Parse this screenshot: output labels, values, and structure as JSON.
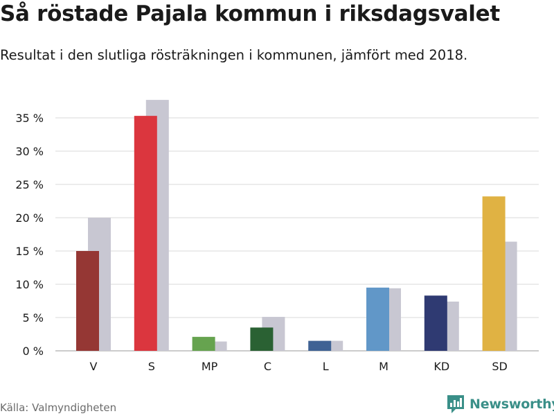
{
  "title": "Så röstade Pajala kommun i riksdagsvalet",
  "subtitle": "Resultat i den slutliga rösträkningen i kommunen, jämfört med 2018.",
  "source": "Källa: Valmyndigheten",
  "brand": "Newsworthy",
  "colors": {
    "comparison": "#c8c7d2",
    "grid": "#dadada",
    "brand": "#3a8f88"
  },
  "chart_data": {
    "type": "bar",
    "categories": [
      "V",
      "S",
      "MP",
      "C",
      "L",
      "M",
      "KD",
      "SD"
    ],
    "series": [
      {
        "values": [
          15.0,
          35.3,
          2.1,
          3.5,
          1.5,
          9.5,
          8.3,
          23.2
        ],
        "colors": [
          "#953734",
          "#db363e",
          "#66a34f",
          "#2a6133",
          "#3f6294",
          "#6197c8",
          "#2f3a72",
          "#e0b243"
        ]
      },
      {
        "values": [
          20.0,
          37.7,
          1.4,
          5.1,
          1.5,
          9.4,
          7.4,
          16.4
        ],
        "color": "#c8c7d2"
      }
    ],
    "yticks": [
      "0 %",
      "5 %",
      "10 %",
      "15 %",
      "20 %",
      "25 %",
      "30 %",
      "35 %"
    ],
    "ylim": [
      0,
      38
    ],
    "grid": true,
    "legend": "none"
  }
}
